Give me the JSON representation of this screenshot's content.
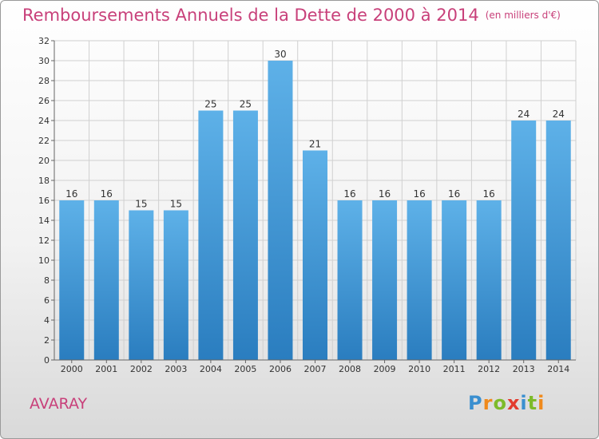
{
  "header": {
    "title": "Remboursements Annuels de la Dette de 2000 à 2014",
    "unit": "(en milliers d'€)"
  },
  "footer": {
    "town": "AVARAY",
    "brand_letters": [
      {
        "ch": "P",
        "color": "#3a8fd0"
      },
      {
        "ch": "r",
        "color": "#f08a1c"
      },
      {
        "ch": "o",
        "color": "#7dbb2a"
      },
      {
        "ch": "x",
        "color": "#e23b2e"
      },
      {
        "ch": "i",
        "color": "#3a8fd0"
      },
      {
        "ch": "t",
        "color": "#7dbb2a"
      },
      {
        "ch": "i",
        "color": "#f08a1c"
      }
    ]
  },
  "colors": {
    "bar_light": "#5eb1e8",
    "bar_dark": "#2a7dbf",
    "title": "#c8407a",
    "grid": "#d0d0d0"
  },
  "chart_data": {
    "type": "bar",
    "title": "Remboursements Annuels de la Dette de 2000 à 2014",
    "unit": "(en milliers d'€)",
    "categories": [
      "2000",
      "2001",
      "2002",
      "2003",
      "2004",
      "2005",
      "2006",
      "2007",
      "2008",
      "2009",
      "2010",
      "2011",
      "2012",
      "2013",
      "2014"
    ],
    "values": [
      16,
      16,
      15,
      15,
      25,
      25,
      30,
      21,
      16,
      16,
      16,
      16,
      16,
      24,
      24
    ],
    "ylim": [
      0,
      32
    ],
    "yticks": [
      0,
      2,
      4,
      6,
      8,
      10,
      12,
      14,
      16,
      18,
      20,
      22,
      24,
      26,
      28,
      30,
      32
    ],
    "grid": true,
    "data_labels": true
  }
}
